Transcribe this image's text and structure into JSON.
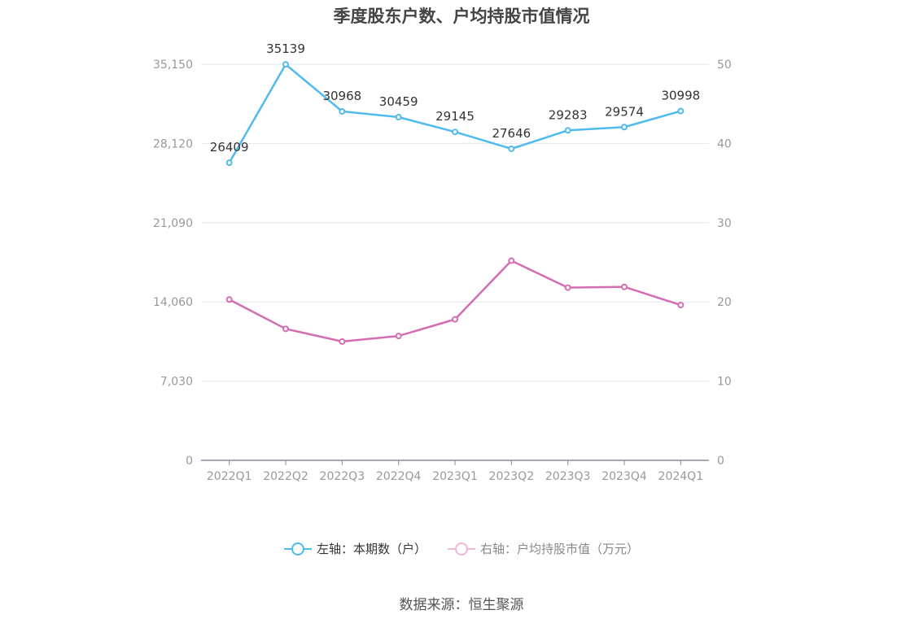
{
  "title": "季度股东户数、户均持股市值情况",
  "source": "数据来源：恒生聚源",
  "chart_data": {
    "type": "line",
    "categories": [
      "2022Q1",
      "2022Q2",
      "2022Q3",
      "2022Q4",
      "2023Q1",
      "2023Q2",
      "2023Q3",
      "2023Q4",
      "2024Q1"
    ],
    "left_axis": {
      "ticks": [
        "0",
        "7,030",
        "14,060",
        "21,090",
        "28,120",
        "35,150"
      ],
      "range": [
        0,
        35150
      ]
    },
    "right_axis": {
      "ticks": [
        "0",
        "10",
        "20",
        "30",
        "40",
        "50"
      ],
      "range": [
        0,
        50
      ]
    },
    "grid": true,
    "legend_position": "bottom",
    "series": [
      {
        "name": "左轴：本期数（户）",
        "axis": "left",
        "color": "#4ebbee",
        "values": [
          26409,
          35139,
          30968,
          30459,
          29145,
          27646,
          29283,
          29574,
          30998
        ],
        "labels": [
          "26409",
          "35139",
          "30968",
          "30459",
          "29145",
          "27646",
          "29283",
          "29574",
          "30998"
        ]
      },
      {
        "name": "右轴：户均持股市值（万元）",
        "axis": "right",
        "color": "#d46cb4",
        "values": [
          20.3,
          16.6,
          15.0,
          15.7,
          17.8,
          25.2,
          21.8,
          21.9,
          19.6
        ]
      }
    ]
  }
}
